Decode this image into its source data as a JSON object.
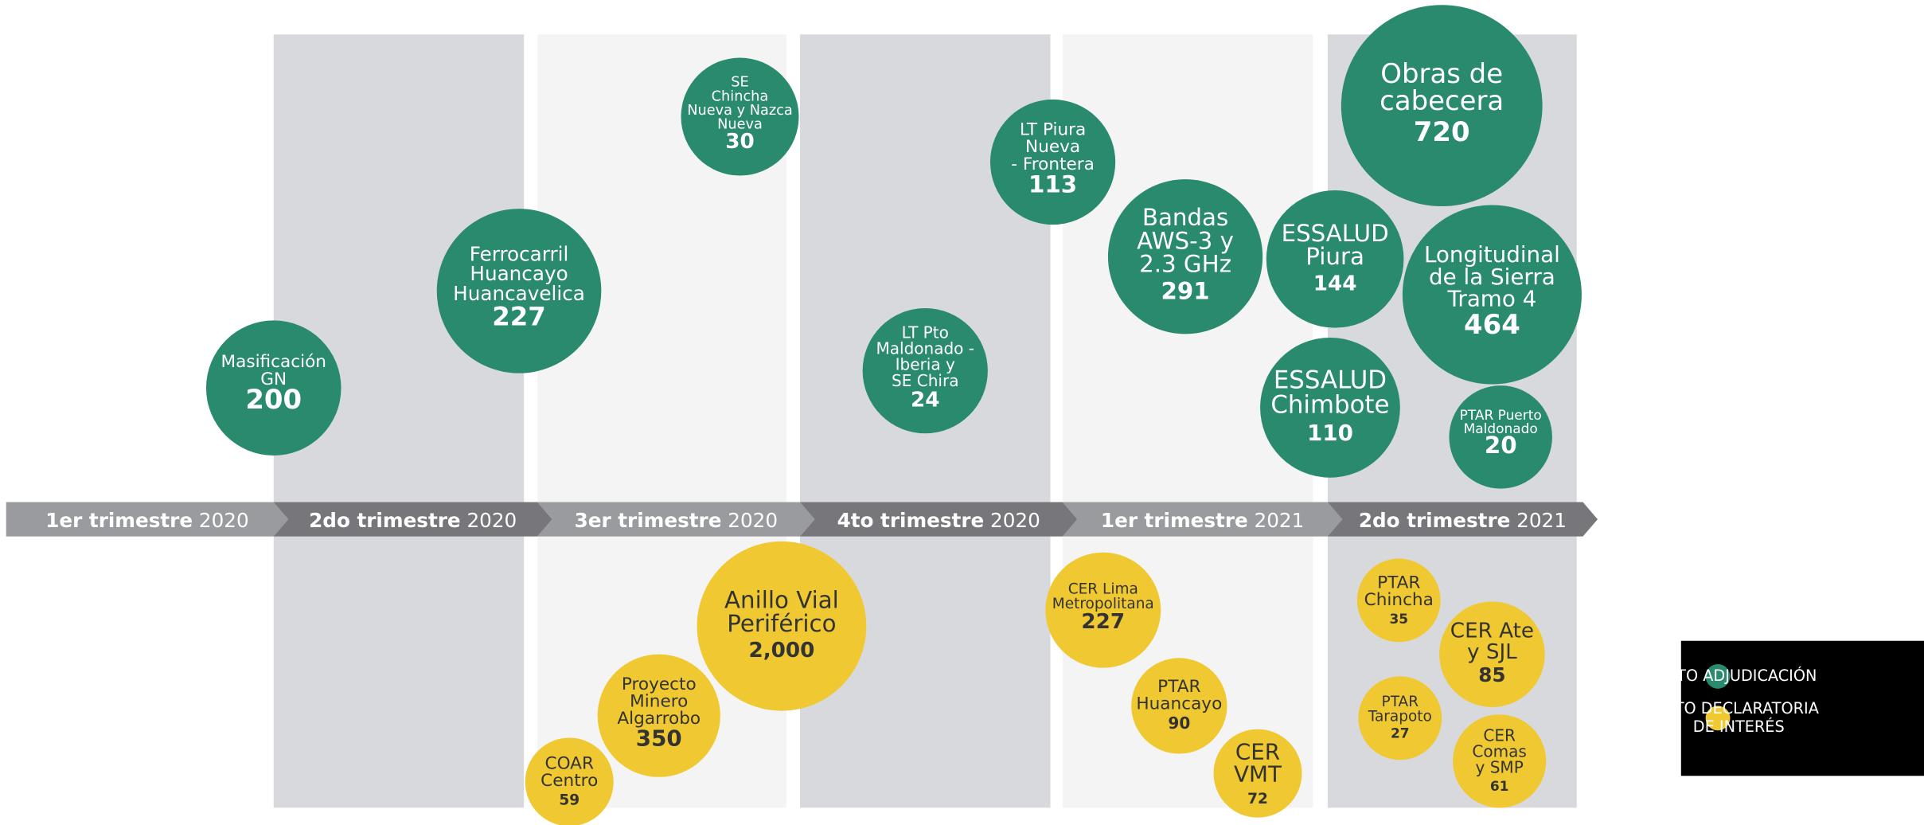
{
  "periods": [
    {
      "bold": "1er trimestre",
      "year": "2020"
    },
    {
      "bold": "2do trimestre",
      "year": "2020"
    },
    {
      "bold": "3er trimestre",
      "year": "2020"
    },
    {
      "bold": "4to trimestre",
      "year": "2020"
    },
    {
      "bold": "1er trimestre",
      "year": "2021"
    },
    {
      "bold": "2do trimestre",
      "year": "2021"
    }
  ],
  "legend": [
    {
      "lines": [
        "HITO ADJUDICACIÓN"
      ],
      "color": "#2a8a6e",
      "text_color": "#ffffff",
      "bubbles": [
        {
          "lines": [
            "Masificación",
            "GN"
          ],
          "value": "200"
        },
        {
          "lines": [
            "Ferrocarril",
            "Huancayo",
            "Huancavelica"
          ],
          "value": "227"
        },
        {
          "lines": [
            "SE",
            "Chincha",
            "Nueva y Nazca",
            "Nueva"
          ],
          "value": "30"
        },
        {
          "lines": [
            "LT Pto",
            "Maldonado -",
            "Iberia y",
            "SE Chira"
          ],
          "value": "24"
        },
        {
          "lines": [
            "LT Piura",
            "Nueva",
            "- Frontera"
          ],
          "value": "113"
        },
        {
          "lines": [
            "Bandas",
            "AWS-3 y",
            "2.3 GHz"
          ],
          "value": "291"
        },
        {
          "lines": [
            "ESSALUD",
            "Piura"
          ],
          "value": "144"
        },
        {
          "lines": [
            "Obras de",
            "cabecera"
          ],
          "value": "720"
        },
        {
          "lines": [
            "Longitudinal",
            "de la Sierra",
            "Tramo 4"
          ],
          "value": "464"
        },
        {
          "lines": [
            "ESSALUD",
            "Chimbote"
          ],
          "value": "110"
        },
        {
          "lines": [
            "PTAR Puerto",
            "Maldonado"
          ],
          "value": "20"
        }
      ]
    },
    {
      "lines": [
        "HITO DECLARATORIA",
        "DE INTERÉS"
      ],
      "color": "#f0c832",
      "text_color": "#333333",
      "bubbles": [
        {
          "lines": [
            "Anillo Vial",
            "Periférico"
          ],
          "value": "2,000"
        },
        {
          "lines": [
            "Proyecto",
            "Minero",
            "Algarrobo"
          ],
          "value": "350"
        },
        {
          "lines": [
            "COAR",
            "Centro"
          ],
          "value": "59"
        },
        {
          "lines": [
            "CER Lima",
            "Metropolitana"
          ],
          "value": "227"
        },
        {
          "lines": [
            "PTAR",
            "Huancayo"
          ],
          "value": "90"
        },
        {
          "lines": [
            "CER",
            "VMT"
          ],
          "value": "72"
        },
        {
          "lines": [
            "PTAR",
            "Chincha"
          ],
          "value": "35"
        },
        {
          "lines": [
            "CER Ate",
            "y SJL"
          ],
          "value": "85"
        },
        {
          "lines": [
            "PTAR",
            "Tarapoto"
          ],
          "value": "27"
        },
        {
          "lines": [
            "CER",
            "Comas",
            "y SMP"
          ],
          "value": "61"
        }
      ]
    }
  ]
}
